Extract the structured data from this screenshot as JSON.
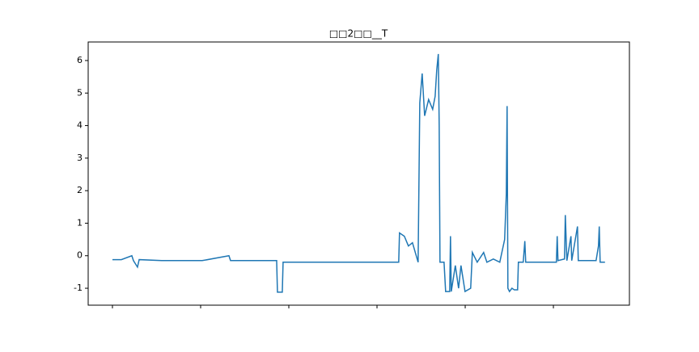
{
  "chart_data": {
    "type": "line",
    "title": "□□2□□__T",
    "x": [
      0,
      101,
      220,
      238,
      284,
      303,
      559,
      1018,
      1321,
      1339,
      1843,
      1862,
      1871,
      1926,
      1935,
      2393,
      3246,
      3255,
      3310,
      3356,
      3402,
      3466,
      3485,
      3512,
      3540,
      3585,
      3631,
      3659,
      3677,
      3695,
      3705,
      3714,
      3760,
      3778,
      3824,
      3833,
      3842,
      3888,
      3925,
      3952,
      3998,
      4062,
      4081,
      4136,
      4209,
      4246,
      4319,
      4392,
      4447,
      4466,
      4475,
      4484,
      4502,
      4530,
      4557,
      4594,
      4603,
      4658,
      4676,
      4686,
      5034,
      5043,
      5052,
      5126,
      5135,
      5153,
      5199,
      5208,
      5273,
      5282,
      5484,
      5511,
      5520,
      5530,
      5585
    ],
    "series": [
      {
        "name": "T",
        "color": "#1f77b4",
        "values": [
          -0.12,
          -0.12,
          0.0,
          -0.15,
          -0.35,
          -0.12,
          -0.15,
          -0.15,
          0.0,
          -0.15,
          -0.15,
          -0.15,
          -1.12,
          -1.12,
          -0.2,
          -0.2,
          -0.2,
          0.7,
          0.6,
          0.3,
          0.4,
          -0.2,
          4.7,
          5.6,
          4.3,
          4.8,
          4.5,
          4.9,
          5.7,
          6.2,
          4.0,
          -0.2,
          -0.2,
          -1.1,
          -1.1,
          0.6,
          -1.1,
          -0.3,
          -1.0,
          -0.3,
          -1.1,
          -1.0,
          0.1,
          -0.2,
          0.1,
          -0.2,
          -0.1,
          -0.2,
          0.5,
          1.9,
          4.6,
          -1.0,
          -1.1,
          -1.0,
          -1.05,
          -1.05,
          -0.2,
          -0.2,
          0.45,
          -0.2,
          -0.2,
          0.6,
          -0.15,
          -0.1,
          1.25,
          -0.15,
          0.6,
          -0.15,
          0.9,
          -0.15,
          -0.15,
          0.3,
          0.9,
          -0.2,
          -0.2
        ]
      }
    ],
    "xlim": [
      -275,
      5862
    ],
    "ylim": [
      -1.52,
      6.57
    ],
    "xticks": [
      0,
      1000,
      2000,
      3000,
      4000,
      5000
    ],
    "yticks": [
      -1,
      0,
      1,
      2,
      3,
      4,
      5,
      6
    ],
    "grid": false
  }
}
